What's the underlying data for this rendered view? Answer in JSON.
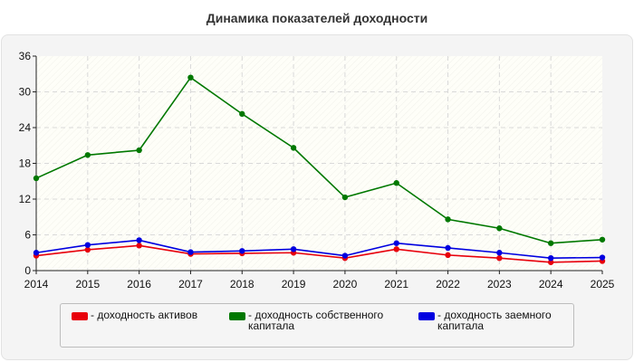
{
  "chart_data": {
    "type": "line",
    "title": "Динамика показателей доходности",
    "xlabel": "",
    "ylabel": "",
    "categories": [
      "2014",
      "2015",
      "2016",
      "2017",
      "2018",
      "2019",
      "2020",
      "2021",
      "2022",
      "2023",
      "2024",
      "2025"
    ],
    "ylim": [
      0,
      36
    ],
    "yticks": [
      0,
      6,
      12,
      18,
      24,
      30,
      36
    ],
    "grid": true,
    "legend_position": "bottom",
    "series": [
      {
        "name": "- доходность активов",
        "color": "#e8000b",
        "values": [
          2.5,
          3.5,
          4.2,
          2.8,
          2.9,
          3.0,
          2.1,
          3.6,
          2.6,
          2.1,
          1.4,
          1.6
        ]
      },
      {
        "name": "- доходность собственного капитала",
        "color": "#007800",
        "values": [
          15.5,
          19.4,
          20.2,
          32.4,
          26.3,
          20.6,
          12.3,
          14.7,
          8.6,
          7.1,
          4.6,
          5.2
        ]
      },
      {
        "name": "- доходность заемного капитала",
        "color": "#0000e0",
        "values": [
          3.0,
          4.3,
          5.1,
          3.1,
          3.3,
          3.6,
          2.5,
          4.6,
          3.8,
          3.0,
          2.1,
          2.2
        ]
      }
    ]
  }
}
